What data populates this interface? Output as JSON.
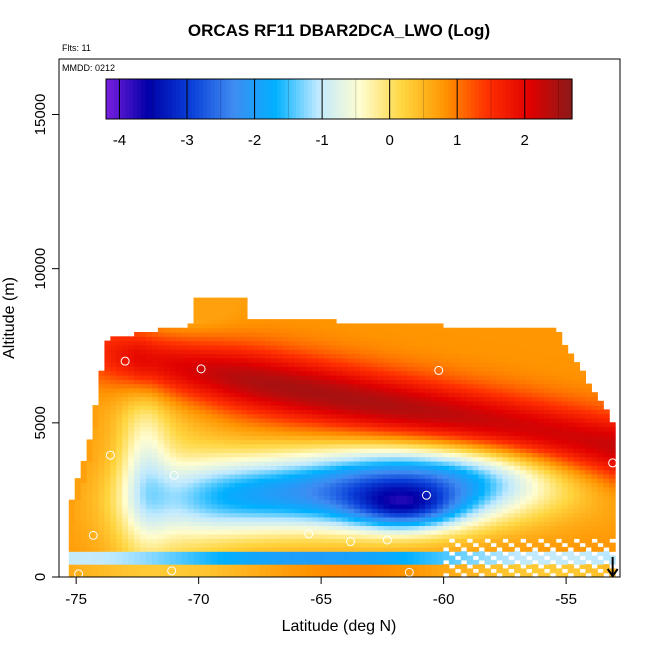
{
  "chart_data": {
    "type": "heatmap",
    "title": "ORCAS RF11 DBAR2DCA_LWO (Log)",
    "flights_note": "Flts: 11",
    "date_note": "MMDD: 0212",
    "xlabel": "Latitude (deg N)",
    "ylabel": "Altitude (m)",
    "xlim": [
      -75.7,
      -52.8
    ],
    "ylim": [
      0,
      16800
    ],
    "x_ticks": [
      -75,
      -70,
      -65,
      -60,
      -55
    ],
    "x_tick_labels": [
      "-75",
      "-70",
      "-65",
      "-60",
      "-55"
    ],
    "y_ticks": [
      0,
      5000,
      10000,
      15000
    ],
    "y_tick_labels": [
      "0",
      "5000",
      "10000",
      "15000"
    ],
    "colorbar": {
      "range": [
        -4.2,
        2.7
      ],
      "ticks": [
        -4,
        -3,
        -2,
        -1,
        0,
        1,
        2
      ],
      "tick_labels": [
        "-4",
        "-3",
        "-2",
        "-1",
        "0",
        "1",
        "2"
      ],
      "colors": [
        "#7a1fe0",
        "#0000a8",
        "#0a3fd8",
        "#3f8cf2",
        "#00b0ff",
        "#bfe9ff",
        "#fffdd0",
        "#ffd640",
        "#ff9400",
        "#ff3000",
        "#e00000",
        "#8b1a1a"
      ]
    },
    "arrow_marker_latitude": -53.1,
    "sample_points": [
      {
        "lat": -74.3,
        "alt": 1350
      },
      {
        "lat": -73.6,
        "alt": 3950
      },
      {
        "lat": -73.0,
        "alt": 7000
      },
      {
        "lat": -71.0,
        "alt": 3300
      },
      {
        "lat": -69.9,
        "alt": 6750
      },
      {
        "lat": -65.5,
        "alt": 1400
      },
      {
        "lat": -63.8,
        "alt": 1150
      },
      {
        "lat": -62.3,
        "alt": 1200
      },
      {
        "lat": -60.7,
        "alt": 2650
      },
      {
        "lat": -60.2,
        "alt": 6700
      },
      {
        "lat": -53.1,
        "alt": 3700
      },
      {
        "lat": -71.1,
        "alt": 200
      },
      {
        "lat": -61.4,
        "alt": 150
      },
      {
        "lat": -74.9,
        "alt": 100
      }
    ],
    "field_description_values": {
      "upper_warm_layer_max": 2.3,
      "dry_core_min": -3.9,
      "surface_band": 0.6
    }
  }
}
